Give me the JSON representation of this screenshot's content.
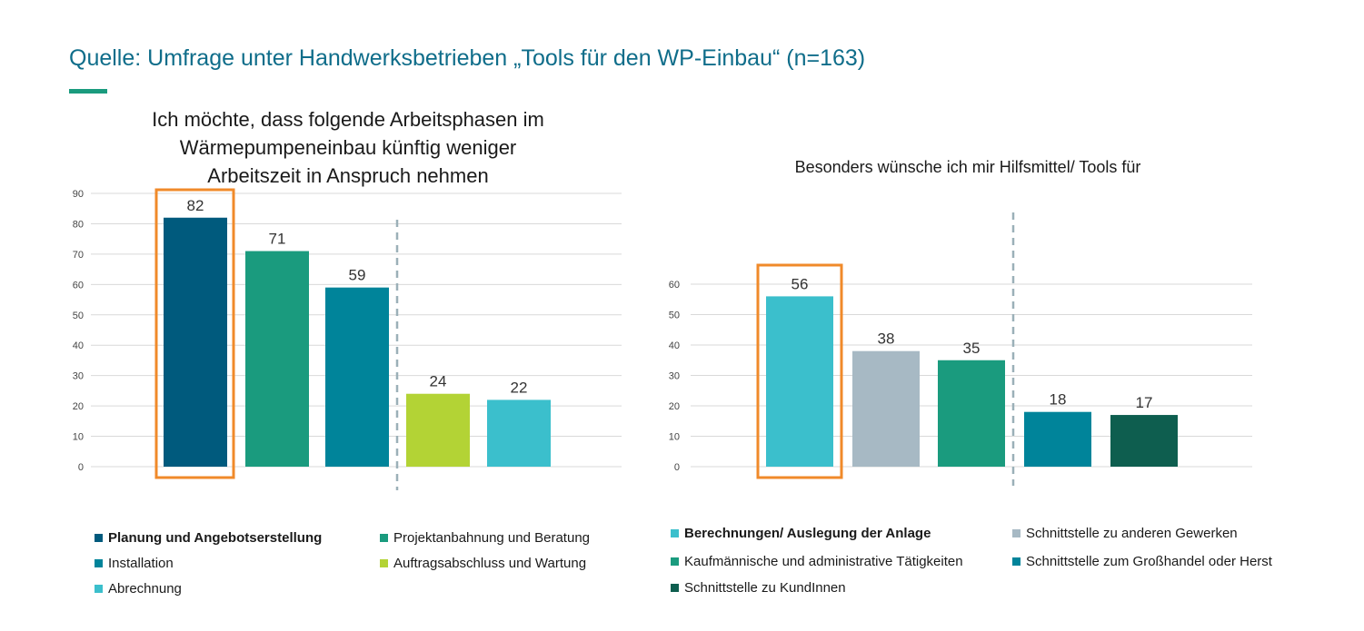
{
  "header": {
    "headline": "Quelle: Umfrage unter Handwerksbetrieben „Tools für den WP-Einbau“ (n=163)"
  },
  "colors": {
    "headline": "#0f6d8a",
    "accent": "#1a9b7e",
    "highlight_box": "#f08a2a",
    "gridline": "#d9d9d9",
    "separator": "#9bb0b8"
  },
  "chart_data": [
    {
      "type": "bar",
      "title": "Ich möchte, dass folgende Arbeitsphasen im Wärmepumpeneinbau künftig weniger Arbeitszeit in Anspruch nehmen",
      "title_lines": [
        "Ich möchte, dass folgende Arbeitsphasen im",
        "Wärmepumpeneinbau künftig weniger",
        "Arbeitszeit in Anspruch nehmen"
      ],
      "categories": [
        "Planung und Angebotserstellung",
        "Projektanbahnung und Beratung",
        "Installation",
        "Auftragsabschluss und Wartung",
        "Abrechnung"
      ],
      "values": [
        82,
        71,
        59,
        24,
        22
      ],
      "colors": [
        "#005a7d",
        "#1a9b7e",
        "#00849a",
        "#b3d335",
        "#3bbfcc"
      ],
      "ylim": [
        0,
        90
      ],
      "yticks": [
        0,
        10,
        20,
        30,
        40,
        50,
        60,
        70,
        80,
        90
      ],
      "highlighted_index": 0,
      "separator_after_index": 2,
      "grid": true,
      "legend_position": "bottom",
      "legend_bold_index": 0,
      "legend": [
        {
          "label": "Planung und Angebotserstellung",
          "color": "#005a7d",
          "bold": true
        },
        {
          "label": "Projektanbahnung und Beratung",
          "color": "#1a9b7e",
          "bold": false
        },
        {
          "label": "Installation",
          "color": "#00849a",
          "bold": false
        },
        {
          "label": "Auftragsabschluss und Wartung",
          "color": "#b3d335",
          "bold": false
        },
        {
          "label": "Abrechnung",
          "color": "#3bbfcc",
          "bold": false
        }
      ]
    },
    {
      "type": "bar",
      "title": "Besonders wünsche ich mir Hilfsmittel/ Tools für",
      "categories": [
        "Berechnungen/ Auslegung der Anlage",
        "Schnittstelle zu anderen Gewerken",
        "Kaufmännische und administrative Tätigkeiten",
        "Schnittstelle zum Großhandel oder Herst",
        "Schnittstelle zu KundInnen"
      ],
      "values": [
        56,
        38,
        35,
        18,
        17
      ],
      "colors": [
        "#3bbfcc",
        "#a7b9c4",
        "#1a9b7e",
        "#00849a",
        "#0e5e4f"
      ],
      "ylim": [
        0,
        60
      ],
      "yticks": [
        0,
        10,
        20,
        30,
        40,
        50,
        60
      ],
      "highlighted_index": 0,
      "separator_after_index": 2,
      "grid": true,
      "legend_position": "bottom",
      "legend_bold_index": 0,
      "legend": [
        {
          "label": "Berechnungen/ Auslegung der Anlage",
          "color": "#3bbfcc",
          "bold": true
        },
        {
          "label": "Schnittstelle zu anderen Gewerken",
          "color": "#a7b9c4",
          "bold": false
        },
        {
          "label": "Kaufmännische und administrative Tätigkeiten",
          "color": "#1a9b7e",
          "bold": false
        },
        {
          "label": "Schnittstelle zum Großhandel oder Herst",
          "color": "#00849a",
          "bold": false
        },
        {
          "label": "Schnittstelle zu KundInnen",
          "color": "#0e5e4f",
          "bold": false
        }
      ]
    }
  ]
}
